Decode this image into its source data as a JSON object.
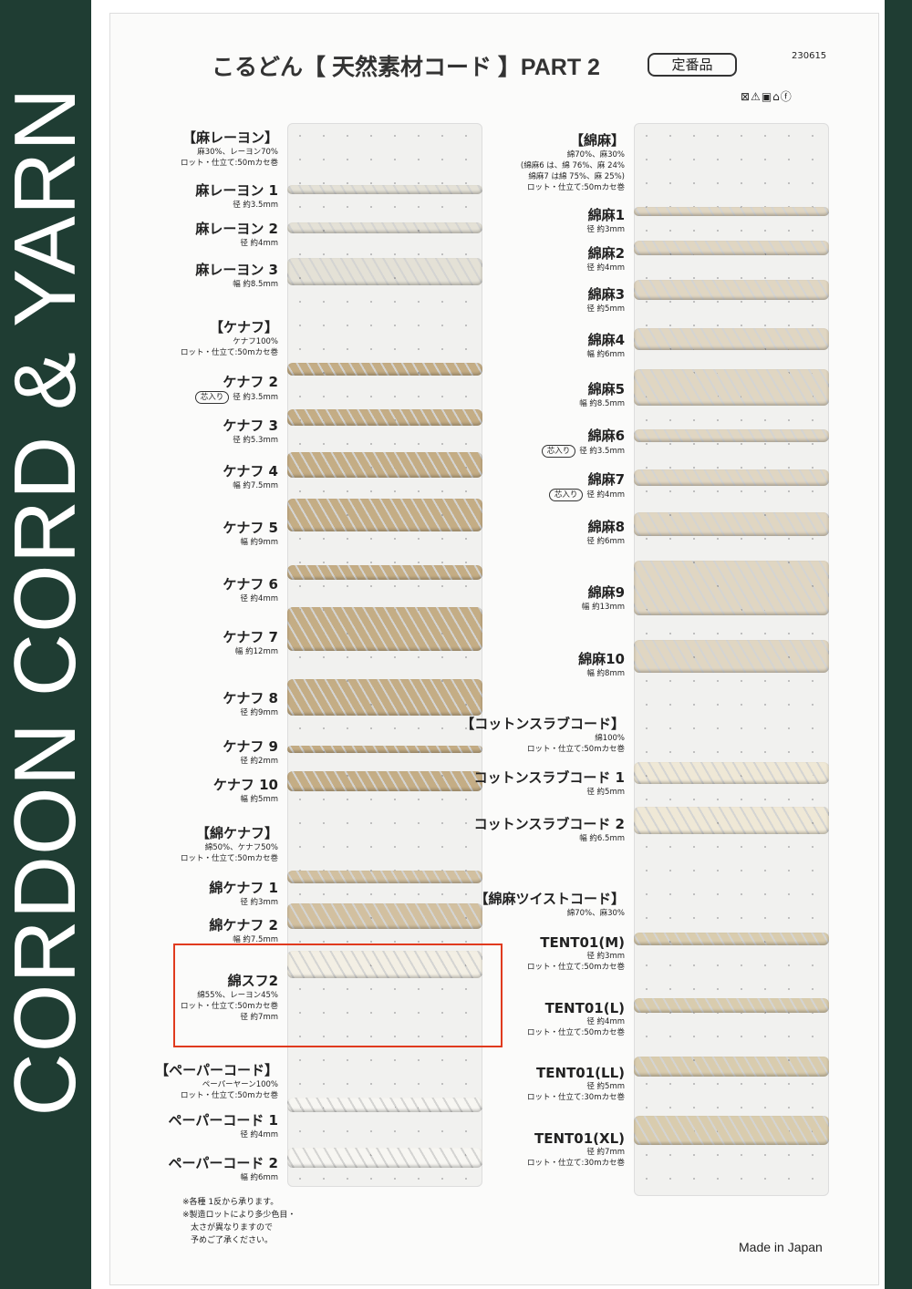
{
  "side_band": "CORDON CORD & YARN",
  "title": "こるどん【 天然素材コード 】PART 2",
  "standard_badge": "定番品",
  "code": "230615",
  "care_symbols": "⊠⚠▣⌂ⓕ",
  "footer": "Made in Japan",
  "notes": [
    "※各種 1反から承ります。",
    "※製造ロットにより多少色目・",
    "　太さが異なりますので",
    "　予めご了承ください。"
  ],
  "colors": {
    "band": "#1f3d33",
    "highlight": "#e03a1e",
    "rayon_linen": "#e4e1d6",
    "kenaf": "#c4ad85",
    "cotton_kenaf": "#d2c0a0",
    "cotton_staple": "#f3efe4",
    "paper": "#f7f6f2",
    "cotton_linen": "#e0d6c2",
    "slub": "#efe8d6",
    "twist": "#d9ccae"
  },
  "left": [
    {
      "type": "group",
      "title": "【麻レーヨン】",
      "lines": [
        "麻30%、レーヨン70%",
        "ロット・仕立て:50mカセ巻"
      ]
    },
    {
      "type": "item",
      "name": "麻レーヨン 1",
      "lines": [
        "径 約3.5mm"
      ],
      "color": "rayon_linen"
    },
    {
      "type": "item",
      "name": "麻レーヨン 2",
      "lines": [
        "径 約4mm"
      ],
      "color": "rayon_linen"
    },
    {
      "type": "item",
      "name": "麻レーヨン 3",
      "lines": [
        "幅 約8.5mm"
      ],
      "color": "rayon_linen"
    },
    {
      "type": "group",
      "title": "【ケナフ】",
      "lines": [
        "ケナフ100%",
        "ロット・仕立て:50mカセ巻"
      ]
    },
    {
      "type": "item",
      "name": "ケナフ 2",
      "badge": "芯入り",
      "lines": [
        "径 約3.5mm"
      ],
      "color": "kenaf"
    },
    {
      "type": "item",
      "name": "ケナフ 3",
      "lines": [
        "径 約5.3mm"
      ],
      "color": "kenaf"
    },
    {
      "type": "item",
      "name": "ケナフ 4",
      "lines": [
        "幅 約7.5mm"
      ],
      "color": "kenaf"
    },
    {
      "type": "item",
      "name": "ケナフ 5",
      "lines": [
        "幅 約9mm"
      ],
      "color": "kenaf"
    },
    {
      "type": "item",
      "name": "ケナフ 6",
      "lines": [
        "径 約4mm"
      ],
      "color": "kenaf"
    },
    {
      "type": "item",
      "name": "ケナフ 7",
      "lines": [
        "幅 約12mm"
      ],
      "color": "kenaf"
    },
    {
      "type": "item",
      "name": "ケナフ 8",
      "lines": [
        "径 約9mm"
      ],
      "color": "kenaf"
    },
    {
      "type": "item",
      "name": "ケナフ 9",
      "lines": [
        "径 約2mm"
      ],
      "color": "kenaf"
    },
    {
      "type": "item",
      "name": "ケナフ 10",
      "lines": [
        "幅 約5mm"
      ],
      "color": "kenaf"
    },
    {
      "type": "group",
      "title": "【綿ケナフ】",
      "lines": [
        "綿50%、ケナフ50%",
        "ロット・仕立て:50mカセ巻"
      ]
    },
    {
      "type": "item",
      "name": "綿ケナフ 1",
      "lines": [
        "径 約3mm"
      ],
      "color": "cotton_kenaf"
    },
    {
      "type": "item",
      "name": "綿ケナフ 2",
      "lines": [
        "幅 約7.5mm"
      ],
      "color": "cotton_kenaf"
    },
    {
      "type": "item",
      "name": "綿スフ2",
      "lines": [
        "綿55%、レーヨン45%",
        "ロット・仕立て:50mカセ巻",
        "径 約7mm"
      ],
      "color": "cotton_staple",
      "highlighted": true
    },
    {
      "type": "group",
      "title": "【ペーパーコード】",
      "lines": [
        "ペーパーヤーン100%",
        "ロット・仕立て:50mカセ巻"
      ]
    },
    {
      "type": "item",
      "name": "ペーパーコード 1",
      "lines": [
        "径 約4mm"
      ],
      "color": "paper"
    },
    {
      "type": "item",
      "name": "ペーパーコード 2",
      "lines": [
        "幅 約6mm"
      ],
      "color": "paper"
    }
  ],
  "right": [
    {
      "type": "group",
      "title": "【綿麻】",
      "lines": [
        "綿70%、麻30%",
        "(綿麻6 は、綿 76%、麻 24%",
        "綿麻7 は綿 75%、麻 25%)",
        "ロット・仕立て:50mカセ巻"
      ]
    },
    {
      "type": "item",
      "name": "綿麻1",
      "lines": [
        "径 約3mm"
      ],
      "color": "cotton_linen"
    },
    {
      "type": "item",
      "name": "綿麻2",
      "lines": [
        "径 約4mm"
      ],
      "color": "cotton_linen"
    },
    {
      "type": "item",
      "name": "綿麻3",
      "lines": [
        "径 約5mm"
      ],
      "color": "cotton_linen"
    },
    {
      "type": "item",
      "name": "綿麻4",
      "lines": [
        "幅 約6mm"
      ],
      "color": "cotton_linen"
    },
    {
      "type": "item",
      "name": "綿麻5",
      "lines": [
        "幅 約8.5mm"
      ],
      "color": "cotton_linen"
    },
    {
      "type": "item",
      "name": "綿麻6",
      "badge": "芯入り",
      "lines": [
        "径 約3.5mm"
      ],
      "color": "cotton_linen"
    },
    {
      "type": "item",
      "name": "綿麻7",
      "badge": "芯入り",
      "lines": [
        "径 約4mm"
      ],
      "color": "cotton_linen"
    },
    {
      "type": "item",
      "name": "綿麻8",
      "lines": [
        "径 約6mm"
      ],
      "color": "cotton_linen"
    },
    {
      "type": "item",
      "name": "綿麻9",
      "lines": [
        "幅 約13mm"
      ],
      "color": "cotton_linen"
    },
    {
      "type": "item",
      "name": "綿麻10",
      "lines": [
        "幅 約8mm"
      ],
      "color": "cotton_linen"
    },
    {
      "type": "group",
      "title": "【コットンスラブコード】",
      "lines": [
        "綿100%",
        "ロット・仕立て:50mカセ巻"
      ]
    },
    {
      "type": "item",
      "name": "コットンスラブコード 1",
      "lines": [
        "径 約5mm"
      ],
      "color": "slub"
    },
    {
      "type": "item",
      "name": "コットンスラブコード 2",
      "lines": [
        "幅 約6.5mm"
      ],
      "color": "slub"
    },
    {
      "type": "group",
      "title": "【綿麻ツイストコード】",
      "lines": [
        "綿70%、麻30%"
      ]
    },
    {
      "type": "item",
      "name": "TENT01(M)",
      "lines": [
        "径 約3mm",
        "ロット・仕立て:50mカセ巻"
      ],
      "color": "twist"
    },
    {
      "type": "item",
      "name": "TENT01(L)",
      "lines": [
        "径 約4mm",
        "ロット・仕立て:50mカセ巻"
      ],
      "color": "twist"
    },
    {
      "type": "item",
      "name": "TENT01(LL)",
      "lines": [
        "径 約5mm",
        "ロット・仕立て:30mカセ巻"
      ],
      "color": "twist"
    },
    {
      "type": "item",
      "name": "TENT01(XL)",
      "lines": [
        "径 約7mm",
        "ロット・仕立て:30mカセ巻"
      ],
      "color": "twist"
    }
  ]
}
